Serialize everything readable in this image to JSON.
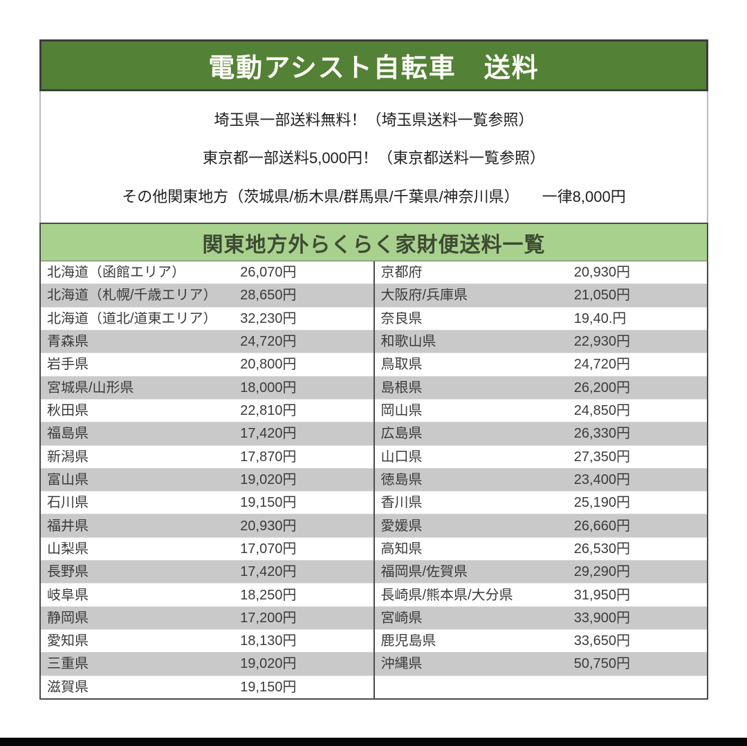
{
  "header": {
    "title": "電動アシスト自転車　送料"
  },
  "notes": [
    "埼玉県一部送料無料！（埼玉県送料一覧参照）",
    "東京都一部送料5,000円！（東京都送料一覧参照）",
    "その他関東地方（茨城県/栃木県/群馬県/千葉県/神奈川県）　　一律8,000円"
  ],
  "table": {
    "title": "関東地方外らくらく家財便送料一覧",
    "left": [
      {
        "region": "北海道（函館エリア）",
        "price": "26,070円"
      },
      {
        "region": "北海道（札幌/千歳エリア）",
        "price": "28,650円"
      },
      {
        "region": "北海道（道北/道東エリア）",
        "price": "32,230円"
      },
      {
        "region": "青森県",
        "price": "24,720円"
      },
      {
        "region": "岩手県",
        "price": "20,800円"
      },
      {
        "region": "宮城県/山形県",
        "price": "18,000円"
      },
      {
        "region": "秋田県",
        "price": "22,810円"
      },
      {
        "region": "福島県",
        "price": "17,420円"
      },
      {
        "region": "新潟県",
        "price": "17,870円"
      },
      {
        "region": "富山県",
        "price": "19,020円"
      },
      {
        "region": "石川県",
        "price": "19,150円"
      },
      {
        "region": "福井県",
        "price": "20,930円"
      },
      {
        "region": "山梨県",
        "price": "17,070円"
      },
      {
        "region": "長野県",
        "price": "17,420円"
      },
      {
        "region": "岐阜県",
        "price": "18,250円"
      },
      {
        "region": "静岡県",
        "price": "17,200円"
      },
      {
        "region": "愛知県",
        "price": "18,130円"
      },
      {
        "region": "三重県",
        "price": "19,020円"
      },
      {
        "region": "滋賀県",
        "price": "19,150円"
      }
    ],
    "right": [
      {
        "region": "京都府",
        "price": "20,930円"
      },
      {
        "region": "大阪府/兵庫県",
        "price": "21,050円"
      },
      {
        "region": "奈良県",
        "price": "19,40.円"
      },
      {
        "region": "和歌山県",
        "price": "22,930円"
      },
      {
        "region": "鳥取県",
        "price": "24,720円"
      },
      {
        "region": "島根県",
        "price": "26,200円"
      },
      {
        "region": "岡山県",
        "price": "24,850円"
      },
      {
        "region": "広島県",
        "price": "26,330円"
      },
      {
        "region": "山口県",
        "price": "27,350円"
      },
      {
        "region": "徳島県",
        "price": "23,400円"
      },
      {
        "region": "香川県",
        "price": "25,190円"
      },
      {
        "region": "愛媛県",
        "price": "26,660円"
      },
      {
        "region": "高知県",
        "price": "26,530円"
      },
      {
        "region": "福岡県/佐賀県",
        "price": "29,290円"
      },
      {
        "region": "長崎県/熊本県/大分県",
        "price": "31,950円"
      },
      {
        "region": "宮崎県",
        "price": "33,900円"
      },
      {
        "region": "鹿児島県",
        "price": "33,650円"
      },
      {
        "region": "沖縄県",
        "price": "50,750円"
      },
      {
        "region": "",
        "price": ""
      }
    ]
  },
  "colors": {
    "header_green": "#538135",
    "table_header_green": "#a9d18e",
    "row_alt_gray": "#c9c9c9",
    "border_dark": "#4a4a4a",
    "bottom_bar_black": "#060606"
  }
}
